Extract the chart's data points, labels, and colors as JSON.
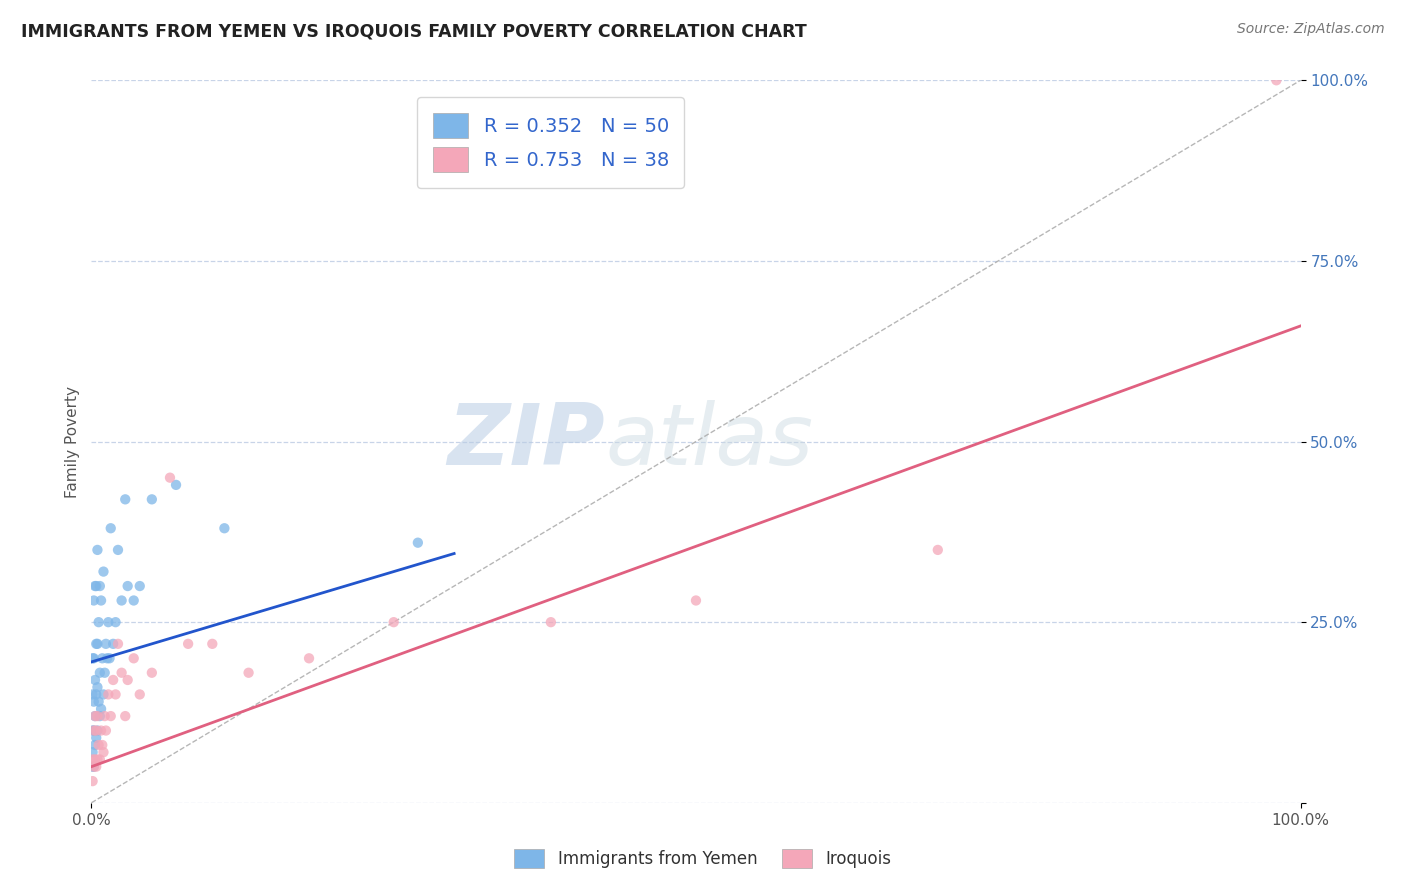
{
  "title": "IMMIGRANTS FROM YEMEN VS IROQUOIS FAMILY POVERTY CORRELATION CHART",
  "source": "Source: ZipAtlas.com",
  "ylabel": "Family Poverty",
  "y_tick_labels": [
    "",
    "25.0%",
    "50.0%",
    "75.0%",
    "100.0%"
  ],
  "y_tick_positions": [
    0.0,
    0.25,
    0.5,
    0.75,
    1.0
  ],
  "x_tick_labels": [
    "0.0%",
    "100.0%"
  ],
  "x_tick_positions": [
    0.0,
    1.0
  ],
  "legend_blue_label": "R = 0.352   N = 50",
  "legend_pink_label": "R = 0.753   N = 38",
  "blue_legend_text": "Immigrants from Yemen",
  "pink_legend_text": "Iroquois",
  "blue_color": "#7EB6E8",
  "pink_color": "#F4A7B9",
  "blue_line_color": "#2255CC",
  "pink_line_color": "#E06080",
  "watermark": "ZIPatlas",
  "background_color": "#ffffff",
  "grid_color": "#c8d4e8",
  "blue_scatter_x": [
    0.001,
    0.001,
    0.001,
    0.001,
    0.001,
    0.002,
    0.002,
    0.002,
    0.002,
    0.002,
    0.003,
    0.003,
    0.003,
    0.003,
    0.004,
    0.004,
    0.004,
    0.004,
    0.005,
    0.005,
    0.005,
    0.005,
    0.006,
    0.006,
    0.007,
    0.007,
    0.007,
    0.008,
    0.008,
    0.009,
    0.01,
    0.01,
    0.011,
    0.012,
    0.013,
    0.014,
    0.015,
    0.016,
    0.018,
    0.02,
    0.022,
    0.025,
    0.028,
    0.03,
    0.035,
    0.04,
    0.05,
    0.07,
    0.11,
    0.27
  ],
  "blue_scatter_y": [
    0.05,
    0.07,
    0.1,
    0.15,
    0.2,
    0.05,
    0.1,
    0.14,
    0.2,
    0.28,
    0.08,
    0.12,
    0.17,
    0.3,
    0.09,
    0.15,
    0.22,
    0.3,
    0.1,
    0.16,
    0.22,
    0.35,
    0.14,
    0.25,
    0.12,
    0.18,
    0.3,
    0.13,
    0.28,
    0.2,
    0.15,
    0.32,
    0.18,
    0.22,
    0.2,
    0.25,
    0.2,
    0.38,
    0.22,
    0.25,
    0.35,
    0.28,
    0.42,
    0.3,
    0.28,
    0.3,
    0.42,
    0.44,
    0.38,
    0.36
  ],
  "pink_scatter_x": [
    0.001,
    0.001,
    0.002,
    0.002,
    0.003,
    0.003,
    0.004,
    0.004,
    0.005,
    0.005,
    0.006,
    0.007,
    0.008,
    0.009,
    0.01,
    0.011,
    0.012,
    0.014,
    0.016,
    0.018,
    0.02,
    0.022,
    0.025,
    0.028,
    0.03,
    0.035,
    0.04,
    0.05,
    0.065,
    0.08,
    0.1,
    0.13,
    0.18,
    0.25,
    0.38,
    0.5,
    0.7,
    0.98
  ],
  "pink_scatter_y": [
    0.03,
    0.06,
    0.05,
    0.1,
    0.06,
    0.12,
    0.05,
    0.1,
    0.06,
    0.12,
    0.08,
    0.06,
    0.1,
    0.08,
    0.07,
    0.12,
    0.1,
    0.15,
    0.12,
    0.17,
    0.15,
    0.22,
    0.18,
    0.12,
    0.17,
    0.2,
    0.15,
    0.18,
    0.45,
    0.22,
    0.22,
    0.18,
    0.2,
    0.25,
    0.25,
    0.28,
    0.35,
    1.0
  ],
  "blue_line_x0": 0.0,
  "blue_line_x1": 0.3,
  "blue_line_y0": 0.195,
  "blue_line_y1": 0.345,
  "pink_line_x0": 0.0,
  "pink_line_x1": 1.0,
  "pink_line_y0": 0.05,
  "pink_line_y1": 0.66
}
